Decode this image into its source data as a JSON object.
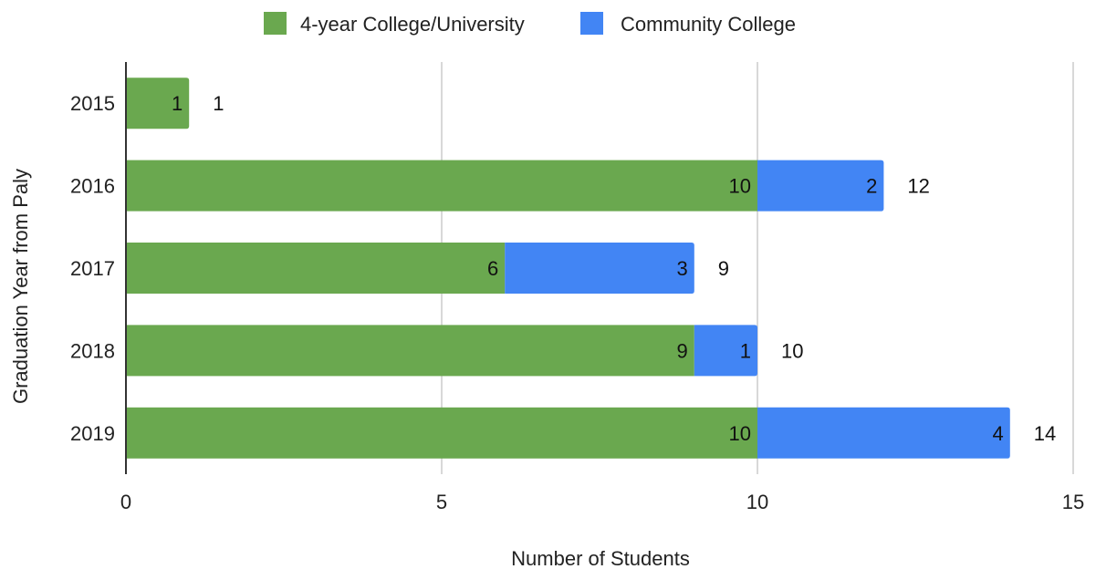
{
  "chart_data": {
    "type": "bar",
    "orientation": "horizontal",
    "stacked": true,
    "categories": [
      "2015",
      "2016",
      "2017",
      "2018",
      "2019"
    ],
    "series": [
      {
        "name": "4-year College/University",
        "values": [
          1,
          10,
          6,
          9,
          10
        ],
        "color": "#6aa84f"
      },
      {
        "name": "Community College",
        "values": [
          0,
          2,
          3,
          1,
          4
        ],
        "color": "#4285f4"
      }
    ],
    "totals": [
      1,
      12,
      9,
      10,
      14
    ],
    "xlabel": "Number of Students",
    "ylabel": "Graduation Year from Paly",
    "xlim": [
      0,
      15
    ],
    "xticks": [
      0,
      5,
      10,
      15
    ],
    "grid": "vertical",
    "legend": "top-center",
    "data_labels": true
  }
}
